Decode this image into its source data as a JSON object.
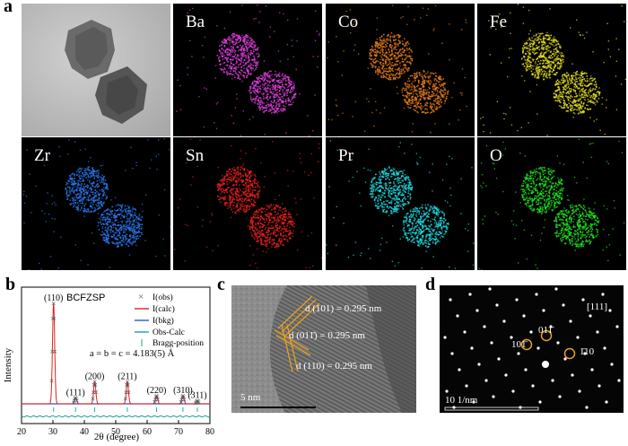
{
  "panel_labels": {
    "a": "a",
    "b": "b",
    "c": "c",
    "d": "d"
  },
  "panel_a": {
    "elements": [
      {
        "label": "Ba",
        "color": "#e040e0"
      },
      {
        "label": "Co",
        "color": "#e07a18"
      },
      {
        "label": "Fe",
        "color": "#e8e020"
      },
      {
        "label": "Zr",
        "color": "#2a78f0"
      },
      {
        "label": "Sn",
        "color": "#e82020"
      },
      {
        "label": "Pr",
        "color": "#20d8e0"
      },
      {
        "label": "O",
        "color": "#20e020"
      }
    ]
  },
  "chart_data": {
    "type": "line",
    "title": "BCFZSP",
    "xlabel": "2θ (degree)",
    "ylabel": "Intensity",
    "xlim": [
      20,
      80
    ],
    "xticks": [
      20,
      30,
      40,
      50,
      60,
      70,
      80
    ],
    "annotation": "a = b = c = 4.183(5) Å",
    "legend": [
      "I(obs)",
      "I(calc)",
      "I(bkg)",
      "Obs-Calc",
      "Bragg-position"
    ],
    "legend_position": "top-right",
    "colors": {
      "obs": "#555555",
      "calc": "#e02020",
      "bkg": "#1f5fbf",
      "diff": "#20a090",
      "bragg": "#20a090"
    },
    "peaks": [
      {
        "label": "(110)",
        "x": 30.2,
        "y": 100
      },
      {
        "label": "(111)",
        "x": 37.2,
        "y": 6
      },
      {
        "label": "(200)",
        "x": 43.3,
        "y": 22
      },
      {
        "label": "(211)",
        "x": 53.7,
        "y": 22
      },
      {
        "label": "(220)",
        "x": 63.0,
        "y": 8
      },
      {
        "label": "(310)",
        "x": 71.4,
        "y": 8
      },
      {
        "label": "(311)",
        "x": 76.0,
        "y": 3
      }
    ]
  },
  "panel_c": {
    "scale_bar": "5 nm",
    "d_spacings": [
      "d (101) = 0.295 nm",
      "d (011̄) = 0.295 nm",
      "d (110) = 0.295 nm"
    ]
  },
  "panel_d": {
    "zone_axis": "[111]",
    "spots": [
      "011̄",
      "101̄",
      "1̄10"
    ],
    "scale_bar": "10 1/nm"
  }
}
